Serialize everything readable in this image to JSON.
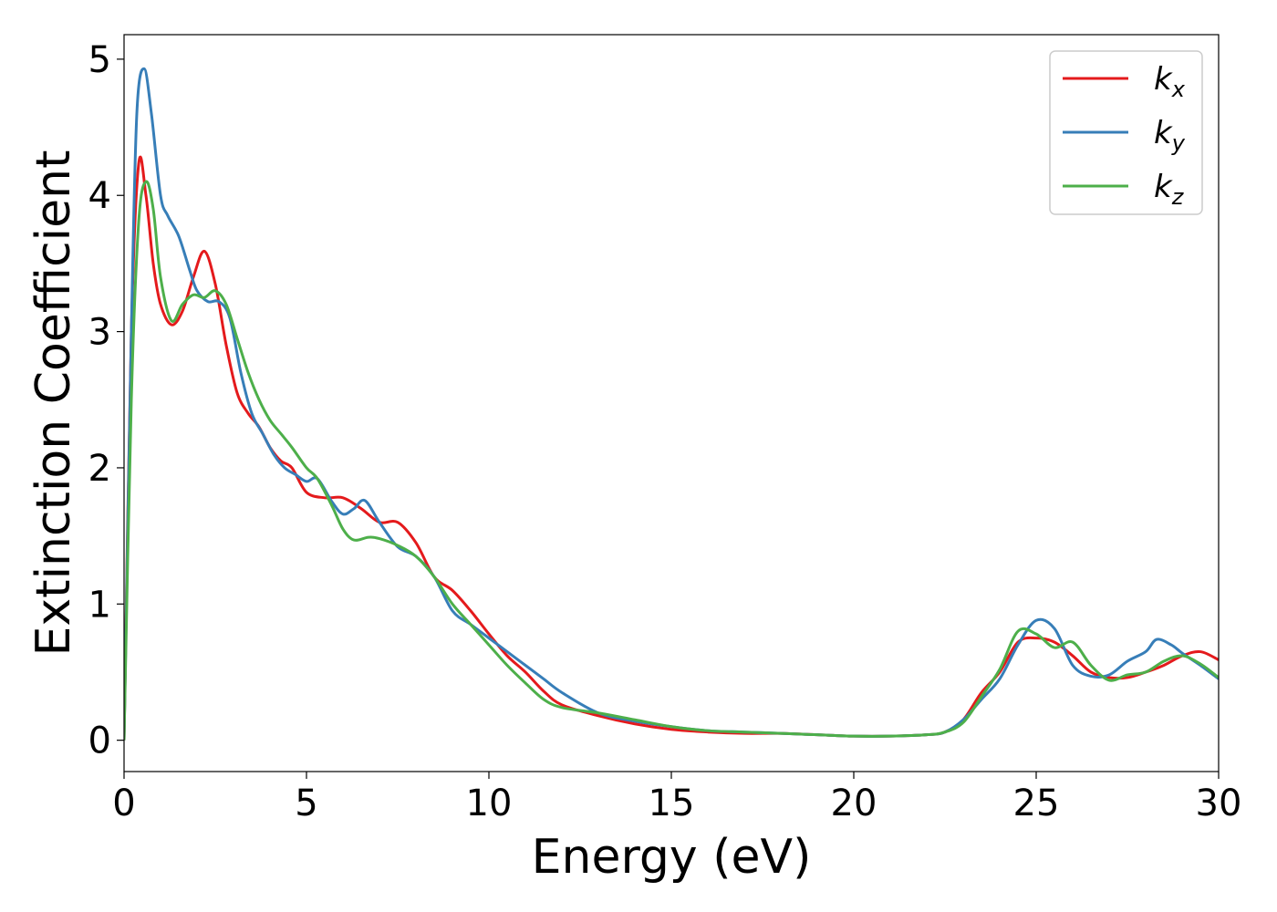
{
  "chart_data": {
    "type": "line",
    "title": "",
    "xlabel": "Energy (eV)",
    "ylabel": "Extinction Coefficient",
    "xlim": [
      0,
      30
    ],
    "ylim": [
      -0.23,
      5.18
    ],
    "xticks": [
      0,
      5,
      10,
      15,
      20,
      25,
      30
    ],
    "xtick_labels": [
      "0",
      "5",
      "10",
      "15",
      "20",
      "25",
      "30"
    ],
    "yticks": [
      0,
      1,
      2,
      3,
      4,
      5
    ],
    "ytick_labels": [
      "0",
      "1",
      "2",
      "3",
      "4",
      "5"
    ],
    "grid": false,
    "legend_position": "top-right",
    "series": [
      {
        "name": "k_x",
        "label_base": "k",
        "label_sub": "x",
        "color": "#e41a1c",
        "x": [
          0,
          0.2,
          0.4,
          0.6,
          0.8,
          1.0,
          1.3,
          1.6,
          1.9,
          2.2,
          2.5,
          2.8,
          3.1,
          3.4,
          3.7,
          4.0,
          4.3,
          4.6,
          5.0,
          5.5,
          6.0,
          6.5,
          7.0,
          7.5,
          8.0,
          8.5,
          9.0,
          9.5,
          10.0,
          10.5,
          11.0,
          11.5,
          12.0,
          13.0,
          14.0,
          15.0,
          16.0,
          17.0,
          18.0,
          19.0,
          20.0,
          21.0,
          22.0,
          22.5,
          23.0,
          23.5,
          24.0,
          24.5,
          25.0,
          25.5,
          26.0,
          26.5,
          27.0,
          27.5,
          28.0,
          28.5,
          29.0,
          29.5,
          30.0
        ],
        "values": [
          0,
          3.0,
          4.23,
          4.0,
          3.5,
          3.2,
          3.05,
          3.15,
          3.4,
          3.59,
          3.35,
          2.9,
          2.55,
          2.4,
          2.3,
          2.15,
          2.05,
          2.0,
          1.82,
          1.78,
          1.78,
          1.7,
          1.6,
          1.6,
          1.45,
          1.2,
          1.1,
          0.95,
          0.78,
          0.62,
          0.5,
          0.36,
          0.26,
          0.18,
          0.12,
          0.08,
          0.06,
          0.05,
          0.05,
          0.04,
          0.03,
          0.03,
          0.04,
          0.06,
          0.15,
          0.35,
          0.5,
          0.72,
          0.75,
          0.72,
          0.62,
          0.5,
          0.46,
          0.46,
          0.5,
          0.55,
          0.62,
          0.65,
          0.59
        ]
      },
      {
        "name": "k_y",
        "label_base": "k",
        "label_sub": "y",
        "color": "#377eb8",
        "x": [
          0,
          0.2,
          0.35,
          0.55,
          0.75,
          1.0,
          1.2,
          1.5,
          1.8,
          2.0,
          2.3,
          2.6,
          2.9,
          3.2,
          3.5,
          3.8,
          4.1,
          4.4,
          4.7,
          5.0,
          5.3,
          5.7,
          6.0,
          6.3,
          6.6,
          7.0,
          7.5,
          8.0,
          8.5,
          9.0,
          9.5,
          10.0,
          10.5,
          11.0,
          11.5,
          12.0,
          13.0,
          14.0,
          15.0,
          16.0,
          17.0,
          18.0,
          19.0,
          20.0,
          21.0,
          22.0,
          22.5,
          23.0,
          23.5,
          24.0,
          24.5,
          25.0,
          25.5,
          26.0,
          26.5,
          27.0,
          27.5,
          28.0,
          28.3,
          28.7,
          29.0,
          29.5,
          30.0
        ],
        "values": [
          0,
          3.0,
          4.6,
          4.93,
          4.6,
          4.0,
          3.85,
          3.7,
          3.45,
          3.3,
          3.22,
          3.22,
          3.1,
          2.7,
          2.4,
          2.25,
          2.1,
          2.0,
          1.95,
          1.9,
          1.92,
          1.75,
          1.66,
          1.7,
          1.76,
          1.6,
          1.42,
          1.35,
          1.2,
          0.95,
          0.85,
          0.75,
          0.65,
          0.55,
          0.45,
          0.35,
          0.2,
          0.14,
          0.1,
          0.07,
          0.06,
          0.05,
          0.04,
          0.03,
          0.03,
          0.04,
          0.06,
          0.15,
          0.3,
          0.45,
          0.7,
          0.88,
          0.82,
          0.55,
          0.47,
          0.48,
          0.58,
          0.65,
          0.74,
          0.7,
          0.64,
          0.55,
          0.45
        ]
      },
      {
        "name": "k_z",
        "label_base": "k",
        "label_sub": "z",
        "color": "#4daf4a",
        "x": [
          0,
          0.2,
          0.4,
          0.6,
          0.8,
          1.0,
          1.3,
          1.6,
          1.9,
          2.2,
          2.5,
          2.8,
          3.1,
          3.4,
          3.7,
          4.0,
          4.3,
          4.6,
          5.0,
          5.3,
          5.7,
          6.0,
          6.3,
          6.7,
          7.0,
          7.5,
          8.0,
          8.5,
          9.0,
          9.5,
          10.0,
          10.5,
          11.0,
          11.5,
          12.0,
          13.0,
          14.0,
          15.0,
          16.0,
          17.0,
          18.0,
          19.0,
          20.0,
          21.0,
          22.0,
          22.5,
          23.0,
          23.5,
          24.0,
          24.5,
          25.0,
          25.5,
          26.0,
          26.5,
          27.0,
          27.5,
          28.0,
          28.5,
          29.0,
          29.5,
          30.0
        ],
        "values": [
          0,
          2.5,
          3.8,
          4.1,
          3.9,
          3.4,
          3.08,
          3.2,
          3.27,
          3.25,
          3.3,
          3.2,
          2.95,
          2.7,
          2.5,
          2.35,
          2.25,
          2.15,
          2.0,
          1.92,
          1.72,
          1.55,
          1.47,
          1.49,
          1.48,
          1.43,
          1.35,
          1.2,
          1.0,
          0.85,
          0.7,
          0.55,
          0.42,
          0.3,
          0.24,
          0.2,
          0.15,
          0.1,
          0.07,
          0.06,
          0.05,
          0.04,
          0.03,
          0.03,
          0.04,
          0.06,
          0.13,
          0.32,
          0.52,
          0.8,
          0.78,
          0.68,
          0.72,
          0.55,
          0.44,
          0.48,
          0.5,
          0.58,
          0.62,
          0.56,
          0.46
        ]
      }
    ]
  }
}
